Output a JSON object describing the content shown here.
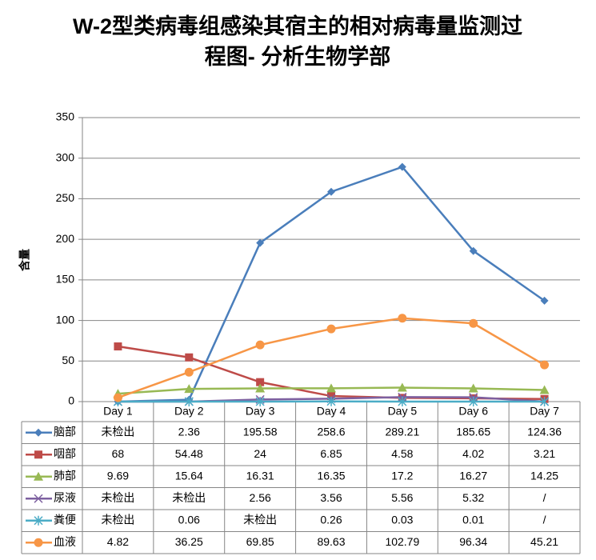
{
  "chart_data": {
    "type": "line",
    "title": "W-2型类病毒组感染其宿主的相对病毒量监测过程图- 分析生物学部",
    "y_label": "含量",
    "categories": [
      "Day 1",
      "Day 2",
      "Day 3",
      "Day 4",
      "Day 5",
      "Day 6",
      "Day 7"
    ],
    "ylim": [
      0,
      350
    ],
    "yticks": [
      0,
      50,
      100,
      150,
      200,
      250,
      300,
      350
    ],
    "grid": true,
    "series": [
      {
        "name": "脑部",
        "color": "#4a7ebb",
        "marker": "diamond",
        "values": [
          0,
          2.36,
          195.58,
          258.6,
          289.21,
          185.65,
          124.36
        ],
        "value_labels": [
          "未检出",
          "2.36",
          "195.58",
          "258.6",
          "289.21",
          "185.65",
          "124.36"
        ]
      },
      {
        "name": "咽部",
        "color": "#be4b48",
        "marker": "square",
        "values": [
          68,
          54.48,
          24,
          6.85,
          4.58,
          4.02,
          3.21
        ]
      },
      {
        "name": "肺部",
        "color": "#98b954",
        "marker": "triangle",
        "values": [
          9.69,
          15.64,
          16.31,
          16.35,
          17.2,
          16.27,
          14.25
        ]
      },
      {
        "name": "尿液",
        "color": "#7d60a0",
        "marker": "x",
        "values": [
          0,
          0,
          2.56,
          3.56,
          5.56,
          5.32,
          0
        ],
        "value_labels": [
          "未检出",
          "未检出",
          "2.56",
          "3.56",
          "5.56",
          "5.32",
          "/"
        ]
      },
      {
        "name": "粪便",
        "color": "#4bacc6",
        "marker": "star",
        "values": [
          0,
          0.06,
          0,
          0.26,
          0.03,
          0.01,
          0
        ],
        "value_labels": [
          "未检出",
          "0.06",
          "未检出",
          "0.26",
          "0.03",
          "0.01",
          "/"
        ]
      },
      {
        "name": "血液",
        "color": "#f79646",
        "marker": "circle",
        "values": [
          4.82,
          36.25,
          69.85,
          89.63,
          102.79,
          96.34,
          45.21
        ]
      }
    ]
  }
}
